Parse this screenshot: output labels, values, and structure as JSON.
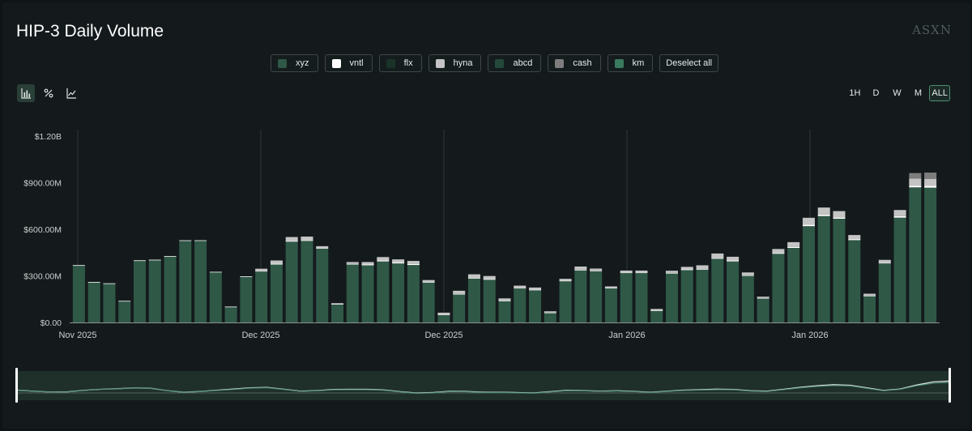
{
  "header": {
    "title": "HIP-3 Daily Volume",
    "brand": "ASXN"
  },
  "legend": [
    {
      "name": "xyz",
      "color": "#2f5847"
    },
    {
      "name": "vntl",
      "color": "#ffffff"
    },
    {
      "name": "flx",
      "color": "#1a3328"
    },
    {
      "name": "hyna",
      "color": "#c4c4c4"
    },
    {
      "name": "abcd",
      "color": "#24483a"
    },
    {
      "name": "cash",
      "color": "#7d7d7d"
    },
    {
      "name": "km",
      "color": "#3a7a5e"
    }
  ],
  "deselect_label": "Deselect all",
  "tools": [
    {
      "icon": "bar-chart-icon"
    },
    {
      "icon": "percent-icon"
    },
    {
      "icon": "line-chart-icon"
    }
  ],
  "ranges": [
    "1H",
    "D",
    "W",
    "M",
    "ALL"
  ],
  "active_range": "ALL",
  "chart_data": {
    "type": "bar",
    "stacked": true,
    "title": "HIP-3 Daily Volume",
    "ylim": [
      0,
      1200000000
    ],
    "y_ticks": [
      "$0.00",
      "$300.00M",
      "$600.00M",
      "$900.00M",
      "$1.20B"
    ],
    "x_tick_labels": [
      "Nov 2025",
      "Dec 2025",
      "Dec 2025",
      "Jan 2026",
      "Jan 2026"
    ],
    "colors": {
      "xyz": "#2f5847",
      "vntl": "#ffffff",
      "hyna": "#c4c4c4",
      "cash": "#7d7d7d"
    },
    "grid": "vertical",
    "series": [
      {
        "name": "xyz",
        "values": [
          365,
          258,
          250,
          137,
          398,
          402,
          425,
          525,
          525,
          323,
          100,
          295,
          328,
          373,
          520,
          525,
          475,
          117,
          373,
          368,
          393,
          380,
          370,
          258,
          48,
          180,
          282,
          275,
          138,
          220,
          208,
          62,
          265,
          335,
          330,
          220,
          318,
          318,
          75,
          315,
          337,
          340,
          410,
          393,
          300,
          155,
          442,
          480,
          620,
          685,
          668,
          530,
          170,
          380,
          675,
          870,
          868
        ]
      },
      {
        "name": "vntl",
        "values": [
          4,
          3,
          2,
          2,
          2,
          2,
          2,
          4,
          4,
          3,
          2,
          2,
          4,
          6,
          6,
          6,
          4,
          2,
          4,
          5,
          6,
          6,
          6,
          3,
          3,
          4,
          4,
          4,
          3,
          3,
          3,
          2,
          4,
          5,
          5,
          3,
          4,
          4,
          3,
          4,
          5,
          6,
          6,
          6,
          4,
          3,
          6,
          7,
          9,
          10,
          9,
          7,
          3,
          5,
          9,
          11,
          11
        ]
      },
      {
        "name": "hyna",
        "values": [
          0,
          0,
          0,
          0,
          0,
          0,
          0,
          0,
          0,
          0,
          0,
          0,
          14,
          20,
          24,
          22,
          12,
          5,
          12,
          16,
          22,
          20,
          20,
          12,
          12,
          20,
          24,
          20,
          14,
          14,
          14,
          8,
          12,
          20,
          12,
          9,
          12,
          12,
          9,
          14,
          16,
          22,
          28,
          24,
          18,
          8,
          25,
          30,
          45,
          45,
          40,
          26,
          12,
          18,
          40,
          45,
          46
        ]
      },
      {
        "name": "cash",
        "values": [
          0,
          0,
          0,
          0,
          0,
          0,
          0,
          0,
          0,
          0,
          0,
          0,
          0,
          0,
          0,
          0,
          0,
          0,
          0,
          0,
          0,
          0,
          0,
          0,
          0,
          0,
          0,
          0,
          0,
          0,
          0,
          0,
          0,
          0,
          0,
          0,
          0,
          0,
          0,
          0,
          0,
          0,
          0,
          0,
          0,
          0,
          0,
          0,
          0,
          0,
          0,
          0,
          0,
          0,
          0,
          36,
          40
        ]
      }
    ],
    "units": "millions USD"
  }
}
